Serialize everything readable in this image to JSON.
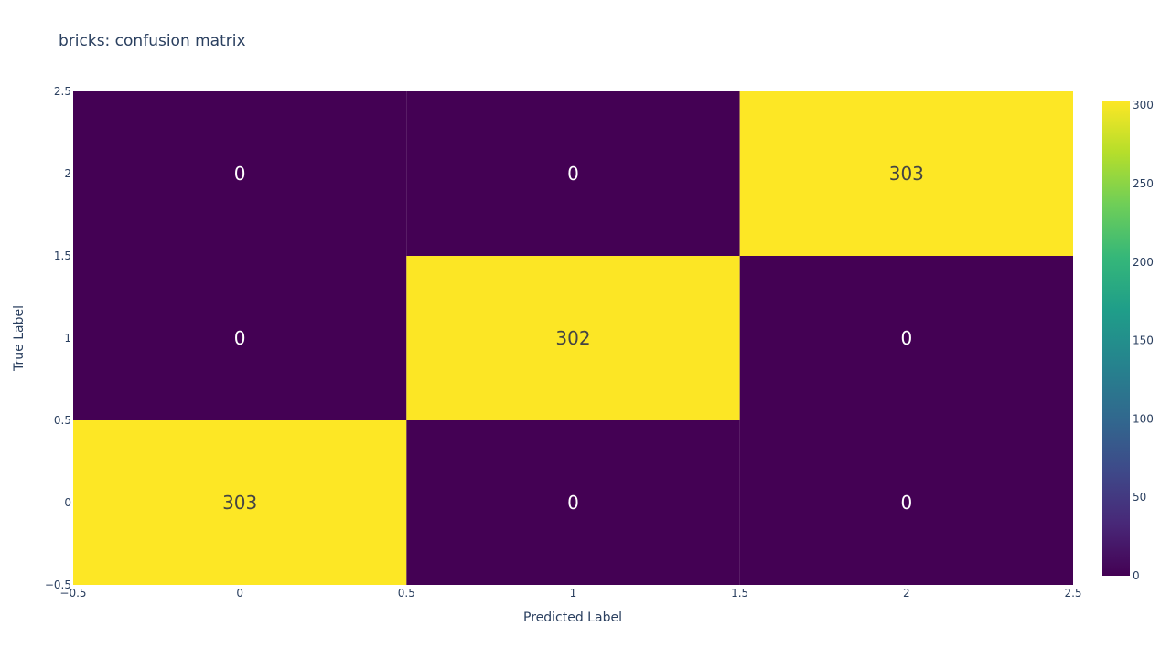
{
  "chart_data": {
    "type": "heatmap",
    "title": "bricks: confusion matrix",
    "xlabel": "Predicted Label",
    "ylabel": "True Label",
    "x": [
      0,
      1,
      2
    ],
    "y": [
      0,
      1,
      2
    ],
    "z": [
      [
        303,
        0,
        0
      ],
      [
        0,
        302,
        0
      ],
      [
        0,
        0,
        303
      ]
    ],
    "xlim": [
      -0.5,
      2.5
    ],
    "ylim": [
      -0.5,
      2.5
    ],
    "x_ticks": [
      "−0.5",
      "0",
      "0.5",
      "1",
      "1.5",
      "2",
      "2.5"
    ],
    "y_ticks": [
      "−0.5",
      "0",
      "0.5",
      "1",
      "1.5",
      "2",
      "2.5"
    ],
    "colorscale": "Viridis",
    "zmin": 0,
    "zmax": 303,
    "colorbar_ticks": [
      0,
      50,
      100,
      150,
      200,
      250,
      300
    ],
    "colors": {
      "low": "#440154",
      "high": "#fde725",
      "text_on_low": "#ffffff",
      "text_on_high": "#444444",
      "axis_text": "#2a3f5f"
    }
  }
}
